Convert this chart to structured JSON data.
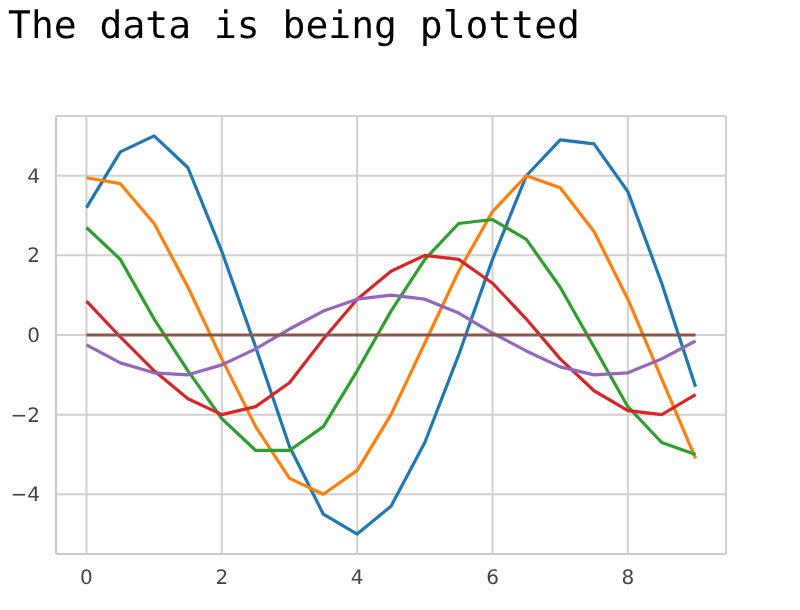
{
  "chart_data": {
    "type": "line",
    "title": "The data is being plotted",
    "xlim": [
      -0.45,
      9.45
    ],
    "ylim": [
      -5.5,
      5.5
    ],
    "xticks": [
      0,
      2,
      4,
      6,
      8
    ],
    "yticks": [
      -4,
      -2,
      0,
      2,
      4
    ],
    "grid": true,
    "legend": false,
    "marker": "none",
    "line_style": "solid",
    "series": [
      {
        "color": "#1f77b4",
        "x": [
          0,
          0.5,
          1,
          1.5,
          2,
          2.5,
          3,
          3.5,
          4,
          4.5,
          5,
          5.5,
          6,
          6.5,
          7,
          7.5,
          8,
          8.5,
          9
        ],
        "values": [
          3.2,
          4.6,
          5.0,
          4.2,
          2.1,
          -0.3,
          -2.8,
          -4.5,
          -5.0,
          -4.3,
          -2.7,
          -0.5,
          1.9,
          4.0,
          4.9,
          4.8,
          3.6,
          1.3,
          -1.3
        ]
      },
      {
        "color": "#ff7f0e",
        "x": [
          0,
          0.5,
          1,
          1.5,
          2,
          2.5,
          3,
          3.5,
          4,
          4.5,
          5,
          5.5,
          6,
          6.5,
          7,
          7.5,
          8,
          8.5,
          9
        ],
        "values": [
          3.95,
          3.8,
          2.8,
          1.2,
          -0.6,
          -2.3,
          -3.6,
          -4.0,
          -3.4,
          -2.0,
          -0.2,
          1.6,
          3.1,
          4.0,
          3.7,
          2.6,
          0.9,
          -1.1,
          -3.1
        ]
      },
      {
        "color": "#2ca02c",
        "x": [
          0,
          0.5,
          1,
          1.5,
          2,
          2.5,
          3,
          3.5,
          4,
          4.5,
          5,
          5.5,
          6,
          6.5,
          7,
          7.5,
          8,
          8.5,
          9
        ],
        "values": [
          2.7,
          1.9,
          0.4,
          -0.9,
          -2.1,
          -2.9,
          -2.9,
          -2.3,
          -0.9,
          0.6,
          1.9,
          2.8,
          2.9,
          2.4,
          1.2,
          -0.3,
          -1.8,
          -2.7,
          -3.0
        ]
      },
      {
        "color": "#d62728",
        "x": [
          0,
          0.5,
          1,
          1.5,
          2,
          2.5,
          3,
          3.5,
          4,
          4.5,
          5,
          5.5,
          6,
          6.5,
          7,
          7.5,
          8,
          8.5,
          9
        ],
        "values": [
          0.85,
          -0.05,
          -0.9,
          -1.6,
          -2.0,
          -1.8,
          -1.2,
          -0.1,
          0.9,
          1.6,
          2.0,
          1.9,
          1.3,
          0.4,
          -0.6,
          -1.4,
          -1.9,
          -2.0,
          -1.5
        ]
      },
      {
        "color": "#9467bd",
        "x": [
          0,
          0.5,
          1,
          1.5,
          2,
          2.5,
          3,
          3.5,
          4,
          4.5,
          5,
          5.5,
          6,
          6.5,
          7,
          7.5,
          8,
          8.5,
          9
        ],
        "values": [
          -0.25,
          -0.7,
          -0.95,
          -1.0,
          -0.75,
          -0.35,
          0.15,
          0.6,
          0.9,
          1.0,
          0.9,
          0.55,
          0.05,
          -0.4,
          -0.8,
          -1.0,
          -0.95,
          -0.6,
          -0.15
        ]
      },
      {
        "color": "#8c564b",
        "x": [
          0,
          9
        ],
        "values": [
          0,
          0
        ]
      }
    ]
  }
}
